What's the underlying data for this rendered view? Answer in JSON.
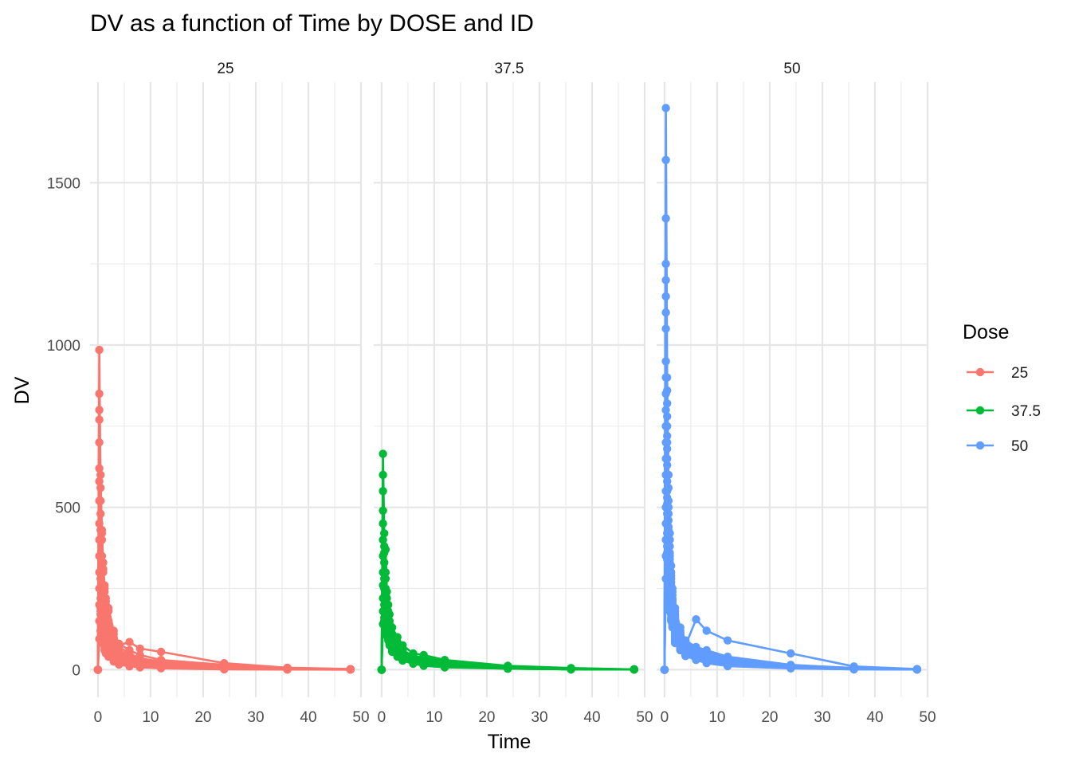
{
  "chart_data": {
    "type": "line",
    "title": "DV as a function of Time by DOSE and ID",
    "xlabel": "Time",
    "ylabel": "DV",
    "facet_labels": [
      "25",
      "37.5",
      "50"
    ],
    "x_ticks": [
      "0",
      "10",
      "20",
      "30",
      "40",
      "50"
    ],
    "y_ticks": [
      "0",
      "500",
      "1000",
      "1500"
    ],
    "xlim": [
      -1.5,
      50
    ],
    "ylim": [
      -85,
      1810
    ],
    "grid": true,
    "markers": true,
    "legend": {
      "title": "Dose",
      "position": "right",
      "entries": [
        {
          "label": "25",
          "color": "#F8766D"
        },
        {
          "label": "37.5",
          "color": "#00BA38"
        },
        {
          "label": "50",
          "color": "#619CFF"
        }
      ]
    },
    "time_points": [
      0,
      0.25,
      0.5,
      0.75,
      1,
      1.25,
      1.5,
      2,
      3,
      4,
      6,
      8,
      12,
      24,
      36,
      48
    ],
    "panels": [
      {
        "dose": "25",
        "color": "#F8766D",
        "subjects": [
          [
            0,
            985,
            560,
            430,
            330,
            260,
            220,
            190,
            120,
            80,
            60,
            45,
            30,
            15,
            5,
            1
          ],
          [
            0,
            850,
            520,
            400,
            300,
            240,
            200,
            150,
            100,
            70,
            50,
            35,
            25,
            12,
            4,
            1
          ],
          [
            0,
            800,
            480,
            350,
            260,
            200,
            170,
            130,
            90,
            60,
            45,
            30,
            20,
            10,
            3,
            1
          ],
          [
            0,
            770,
            600,
            420,
            310,
            250,
            210,
            180,
            110,
            75,
            85,
            65,
            55,
            20,
            6,
            2
          ],
          [
            0,
            700,
            430,
            320,
            240,
            190,
            160,
            120,
            80,
            55,
            40,
            30,
            20,
            8,
            3,
            1
          ],
          [
            0,
            620,
            400,
            300,
            220,
            180,
            150,
            110,
            75,
            50,
            35,
            25,
            18,
            7,
            2,
            1
          ],
          [
            0,
            580,
            350,
            260,
            200,
            160,
            130,
            100,
            65,
            45,
            30,
            22,
            15,
            6,
            2,
            1
          ],
          [
            0,
            520,
            300,
            230,
            180,
            140,
            120,
            90,
            60,
            40,
            28,
            20,
            14,
            5,
            2,
            1
          ],
          [
            0,
            450,
            280,
            200,
            150,
            120,
            100,
            80,
            50,
            35,
            25,
            18,
            12,
            4,
            1,
            0.5
          ],
          [
            0,
            400,
            250,
            180,
            130,
            110,
            90,
            70,
            45,
            30,
            20,
            15,
            10,
            3,
            1,
            0.5
          ],
          [
            0,
            350,
            220,
            160,
            120,
            100,
            80,
            60,
            40,
            28,
            18,
            12,
            8,
            3,
            1,
            0.5
          ],
          [
            0,
            300,
            190,
            140,
            110,
            90,
            70,
            55,
            35,
            25,
            16,
            10,
            7,
            2,
            1,
            0.5
          ],
          [
            0,
            250,
            170,
            120,
            100,
            80,
            60,
            50,
            30,
            20,
            14,
            9,
            6,
            2,
            1,
            0.5
          ],
          [
            0,
            200,
            150,
            110,
            90,
            70,
            55,
            45,
            28,
            18,
            12,
            8,
            5,
            2,
            0.5,
            0.2
          ],
          [
            0,
            150,
            120,
            100,
            80,
            60,
            50,
            40,
            25,
            16,
            10,
            7,
            4,
            1,
            0.5,
            0.2
          ],
          [
            0,
            95,
            180,
            230,
            170,
            130,
            110,
            90,
            55,
            35,
            25,
            18,
            12,
            4,
            1,
            0.5
          ]
        ]
      },
      {
        "dose": "37.5",
        "color": "#00BA38",
        "subjects": [
          [
            0,
            665,
            420,
            370,
            240,
            200,
            170,
            130,
            100,
            75,
            50,
            45,
            30,
            12,
            5,
            1
          ],
          [
            0,
            600,
            380,
            300,
            220,
            180,
            150,
            110,
            85,
            60,
            42,
            38,
            25,
            10,
            4,
            1
          ],
          [
            0,
            550,
            360,
            280,
            200,
            170,
            140,
            100,
            75,
            55,
            38,
            32,
            20,
            8,
            3,
            1
          ],
          [
            0,
            490,
            330,
            250,
            180,
            150,
            130,
            95,
            70,
            50,
            35,
            28,
            18,
            7,
            3,
            1
          ],
          [
            0,
            450,
            300,
            230,
            170,
            140,
            120,
            90,
            65,
            45,
            32,
            25,
            15,
            6,
            2,
            1
          ],
          [
            0,
            400,
            280,
            210,
            160,
            130,
            110,
            85,
            60,
            42,
            30,
            22,
            14,
            5,
            2,
            1
          ],
          [
            0,
            350,
            250,
            190,
            150,
            120,
            100,
            80,
            55,
            40,
            28,
            20,
            12,
            5,
            2,
            1
          ],
          [
            0,
            300,
            220,
            170,
            140,
            110,
            95,
            75,
            50,
            38,
            26,
            18,
            11,
            4,
            1,
            0.5
          ],
          [
            0,
            260,
            200,
            160,
            130,
            105,
            90,
            70,
            48,
            35,
            24,
            16,
            10,
            4,
            1,
            0.5
          ],
          [
            0,
            220,
            180,
            150,
            120,
            100,
            85,
            65,
            45,
            32,
            22,
            15,
            9,
            3,
            1,
            0.5
          ],
          [
            0,
            180,
            160,
            140,
            110,
            95,
            80,
            60,
            42,
            30,
            20,
            14,
            8,
            3,
            1,
            0.5
          ],
          [
            0,
            140,
            150,
            130,
            105,
            90,
            75,
            55,
            40,
            28,
            18,
            12,
            7,
            3,
            1,
            0.5
          ]
        ]
      },
      {
        "dose": "50",
        "color": "#619CFF",
        "subjects": [
          [
            0,
            1730,
            900,
            600,
            420,
            320,
            250,
            190,
            130,
            90,
            70,
            60,
            40,
            15,
            5,
            1
          ],
          [
            0,
            1570,
            860,
            560,
            400,
            300,
            240,
            180,
            120,
            85,
            65,
            55,
            35,
            14,
            5,
            1
          ],
          [
            0,
            1390,
            820,
            520,
            380,
            290,
            230,
            170,
            115,
            80,
            60,
            50,
            32,
            12,
            4,
            1
          ],
          [
            0,
            1250,
            780,
            500,
            360,
            280,
            220,
            165,
            110,
            78,
            58,
            48,
            30,
            12,
            4,
            1
          ],
          [
            0,
            1200,
            750,
            480,
            350,
            270,
            215,
            160,
            105,
            75,
            155,
            120,
            90,
            50,
            10,
            2
          ],
          [
            0,
            1150,
            720,
            460,
            340,
            260,
            210,
            155,
            100,
            72,
            55,
            45,
            28,
            11,
            4,
            1
          ],
          [
            0,
            1100,
            700,
            440,
            330,
            250,
            205,
            150,
            98,
            70,
            52,
            42,
            26,
            10,
            3,
            1
          ],
          [
            0,
            1050,
            680,
            430,
            320,
            245,
            200,
            145,
            95,
            68,
            50,
            40,
            25,
            10,
            3,
            1
          ],
          [
            0,
            950,
            650,
            420,
            310,
            240,
            195,
            140,
            92,
            66,
            48,
            38,
            24,
            9,
            3,
            1
          ],
          [
            0,
            900,
            630,
            410,
            300,
            235,
            190,
            135,
            90,
            64,
            46,
            36,
            23,
            9,
            3,
            1
          ],
          [
            0,
            850,
            600,
            400,
            290,
            230,
            185,
            130,
            88,
            62,
            45,
            35,
            22,
            8,
            3,
            1
          ],
          [
            0,
            800,
            580,
            390,
            280,
            225,
            180,
            125,
            85,
            60,
            44,
            34,
            21,
            8,
            3,
            1
          ],
          [
            0,
            750,
            550,
            380,
            270,
            220,
            175,
            120,
            82,
            58,
            42,
            32,
            20,
            7,
            2,
            1
          ],
          [
            0,
            700,
            530,
            370,
            260,
            215,
            170,
            115,
            80,
            56,
            40,
            30,
            19,
            7,
            2,
            1
          ],
          [
            0,
            650,
            510,
            360,
            250,
            210,
            165,
            110,
            78,
            54,
            38,
            28,
            18,
            6,
            2,
            1
          ],
          [
            0,
            600,
            480,
            350,
            240,
            200,
            160,
            105,
            75,
            52,
            36,
            26,
            17,
            6,
            2,
            1
          ],
          [
            0,
            550,
            450,
            340,
            230,
            190,
            155,
            100,
            72,
            50,
            35,
            25,
            16,
            6,
            2,
            1
          ],
          [
            0,
            500,
            420,
            330,
            220,
            180,
            150,
            95,
            70,
            48,
            34,
            24,
            15,
            5,
            2,
            1
          ],
          [
            0,
            450,
            400,
            320,
            210,
            170,
            145,
            90,
            68,
            46,
            33,
            23,
            14,
            5,
            2,
            1
          ],
          [
            0,
            400,
            380,
            310,
            200,
            160,
            140,
            88,
            65,
            45,
            32,
            22,
            13,
            5,
            2,
            1
          ],
          [
            0,
            350,
            360,
            300,
            190,
            155,
            135,
            85,
            62,
            44,
            31,
            21,
            12,
            4,
            1,
            0.5
          ],
          [
            0,
            280,
            340,
            290,
            180,
            150,
            130,
            82,
            60,
            42,
            30,
            20,
            11,
            4,
            1,
            0.5
          ]
        ]
      }
    ]
  }
}
